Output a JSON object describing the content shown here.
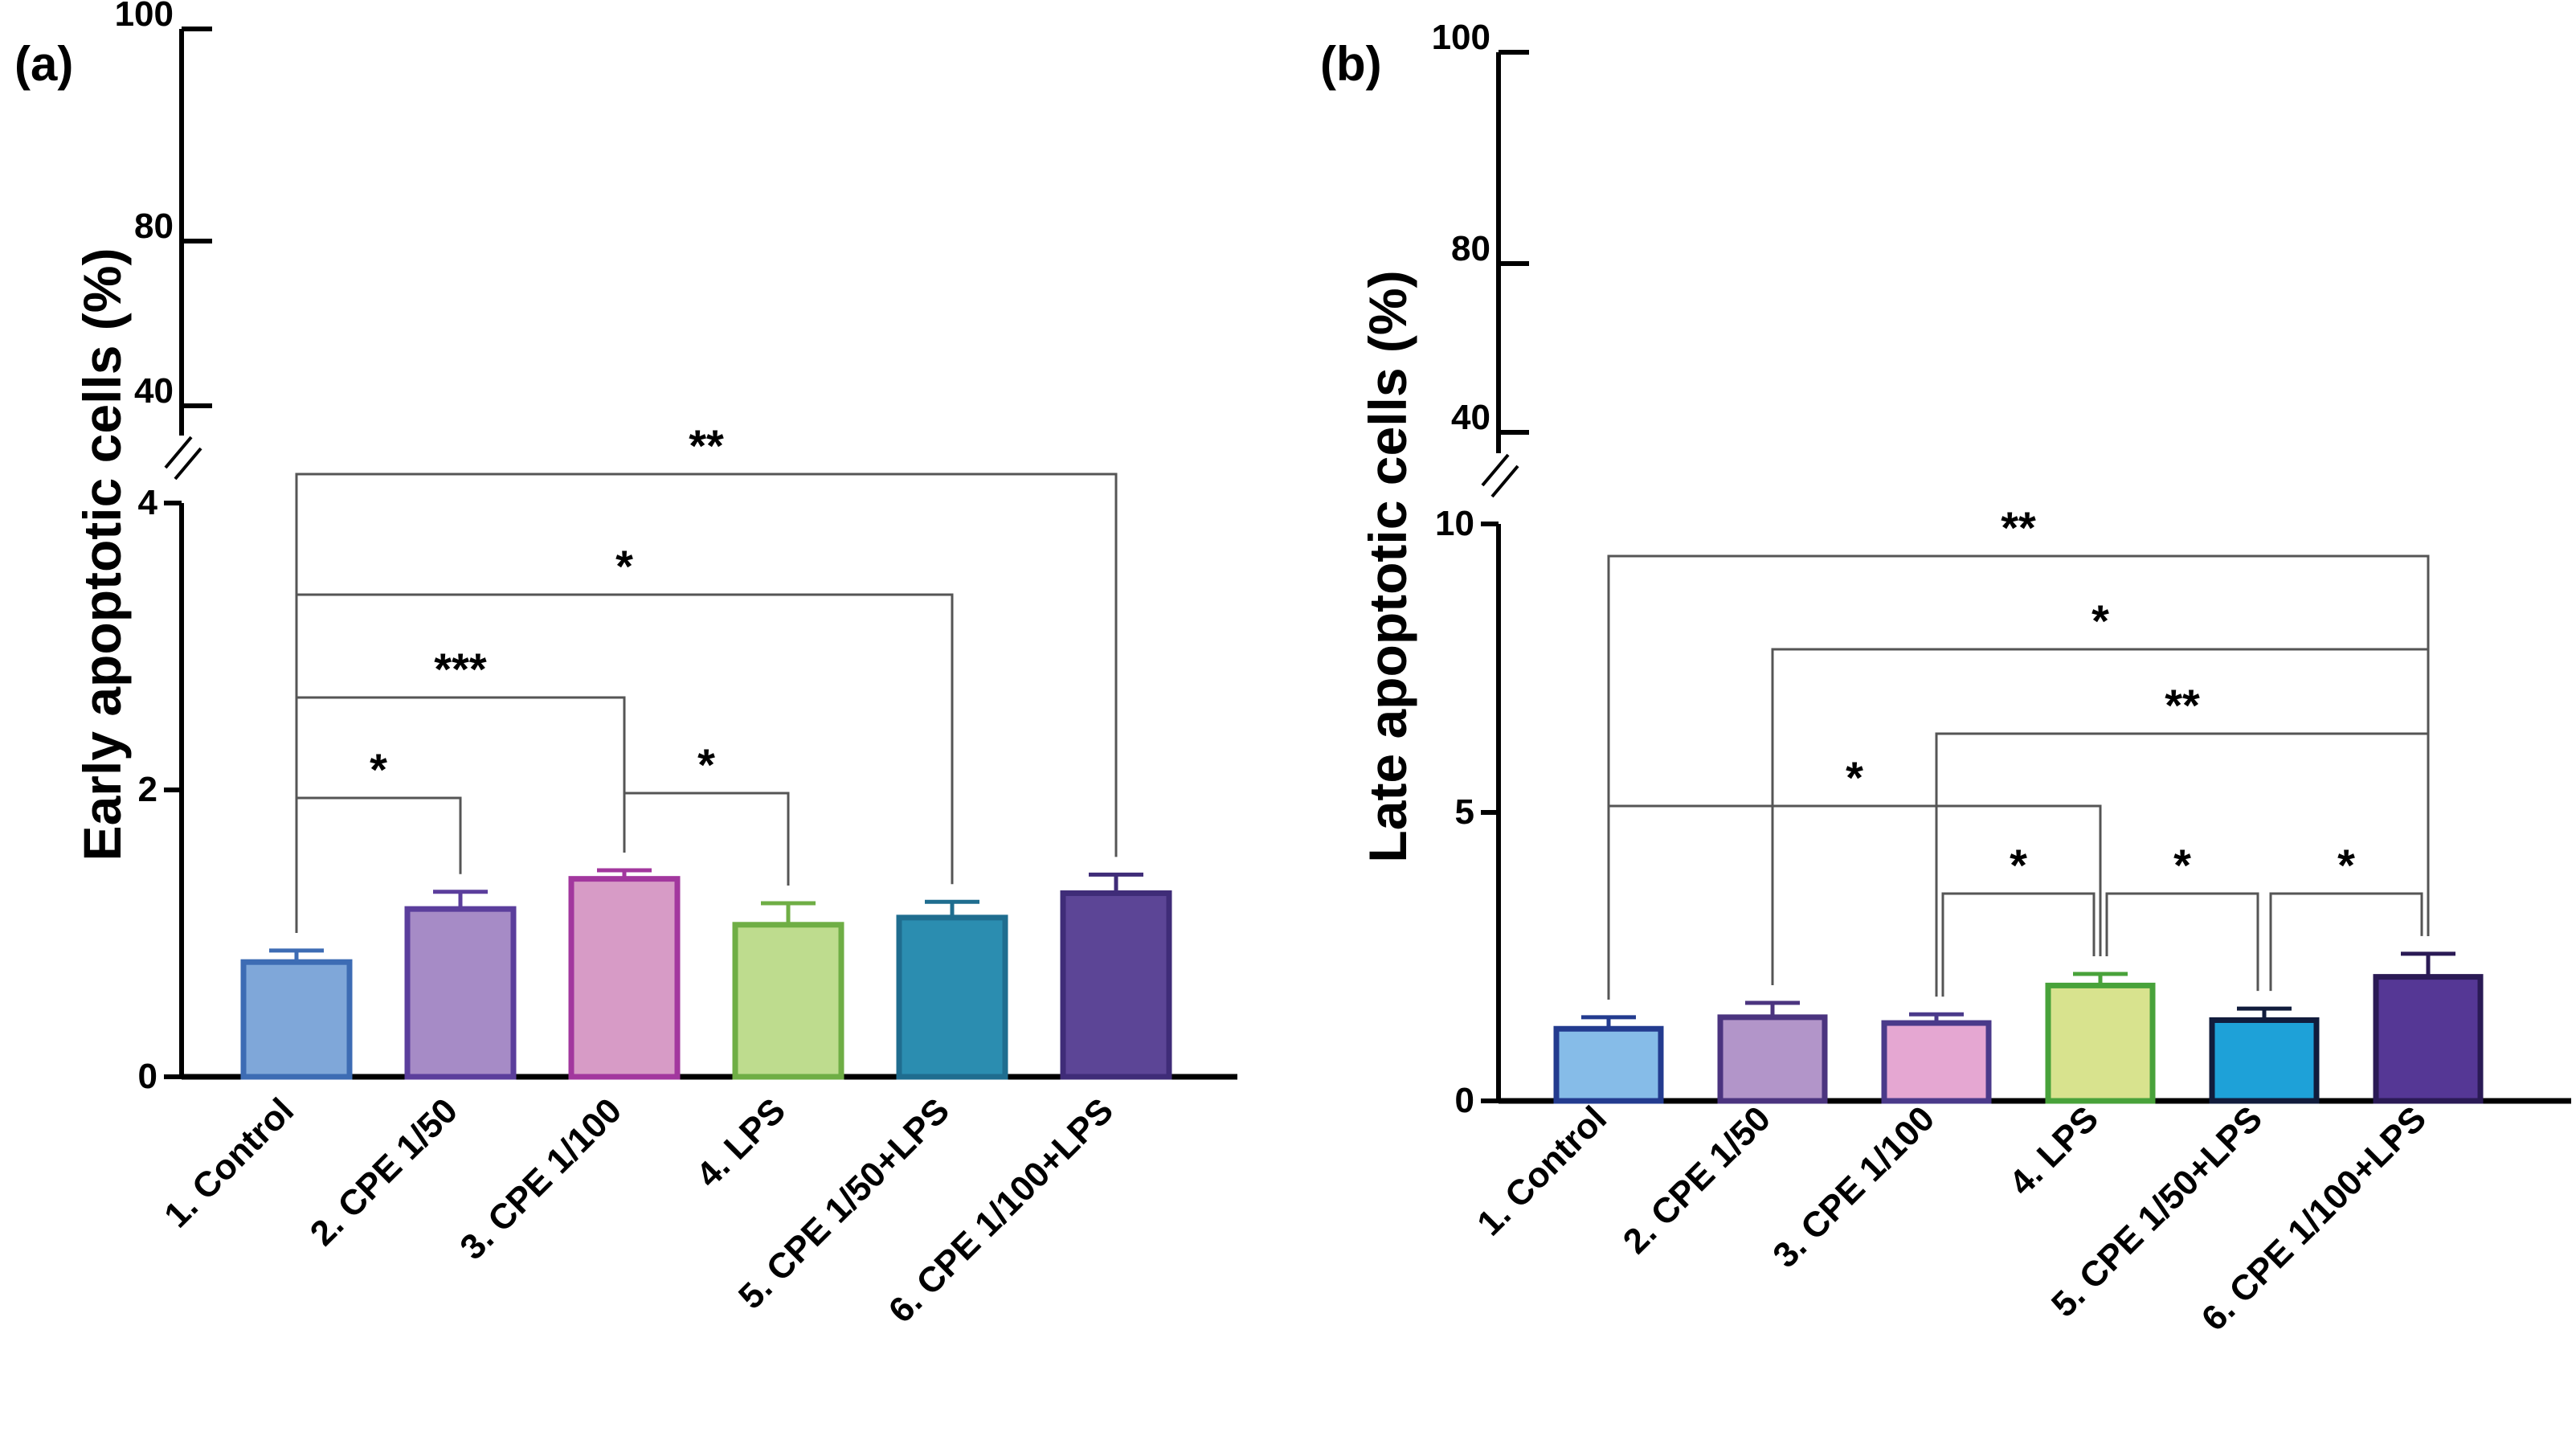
{
  "chart_data": [
    {
      "panel_label": "(a)",
      "type": "bar",
      "ylabel": "Early apoptotic  cells (%)",
      "categories": [
        "1. Control",
        "2. CPE 1/50",
        "3. CPE 1/100",
        "4. LPS",
        "5. CPE 1/50+LPS",
        "6. CPE 1/100+LPS"
      ],
      "values": [
        0.8,
        1.17,
        1.38,
        1.06,
        1.11,
        1.28
      ],
      "errors": [
        0.08,
        0.12,
        0.06,
        0.15,
        0.11,
        0.13
      ],
      "colors": {
        "fill": [
          "#7fa7d9",
          "#a68bc6",
          "#d79bc6",
          "#bedc8e",
          "#2b8db0",
          "#5c4596"
        ],
        "stroke": [
          "#3d6cb4",
          "#5b3e9c",
          "#a2379e",
          "#6fae45",
          "#1f6d8f",
          "#3f2c78"
        ]
      },
      "ylim_lower": [
        0,
        4
      ],
      "yticks_lower": [
        "0",
        "2",
        "4"
      ],
      "yticks_upper": [
        "40",
        "80",
        "100"
      ],
      "significance": [
        {
          "from": 1,
          "to": 6,
          "label": "**"
        },
        {
          "from": 1,
          "to": 5,
          "label": "*"
        },
        {
          "from": 1,
          "to": 3,
          "label": "***"
        },
        {
          "from": 1,
          "to": 2,
          "label": "*"
        },
        {
          "from": 3,
          "to": 4,
          "label": "*"
        }
      ]
    },
    {
      "panel_label": "(b)",
      "type": "bar",
      "ylabel": "Late apoptotic  cells (%)",
      "categories": [
        "1. Control",
        "2. CPE 1/50",
        "3. CPE 1/100",
        "4. LPS",
        "5. CPE 1/50+LPS",
        "6. CPE 1/100+LPS"
      ],
      "values": [
        1.25,
        1.45,
        1.35,
        2.0,
        1.4,
        2.15
      ],
      "errors": [
        0.2,
        0.25,
        0.15,
        0.2,
        0.2,
        0.4
      ],
      "colors": {
        "fill": [
          "#86bce8",
          "#b295c9",
          "#e5a7d2",
          "#d8e38e",
          "#1ea1d8",
          "#553795"
        ],
        "stroke": [
          "#233b8f",
          "#4b347f",
          "#4a3a8a",
          "#48a23a",
          "#111c3c",
          "#2a1a55"
        ]
      },
      "ylim_lower": [
        0,
        10
      ],
      "yticks_lower": [
        "0",
        "5",
        "10"
      ],
      "yticks_upper": [
        "40",
        "80",
        "100"
      ],
      "significance": [
        {
          "from": 1,
          "to": 6,
          "label": "**"
        },
        {
          "from": 2,
          "to": 6,
          "label": "*"
        },
        {
          "from": 3,
          "to": 6,
          "label": "**"
        },
        {
          "from": 1,
          "to": 4,
          "label": "*"
        },
        {
          "from": 3,
          "to": 4,
          "label": "*"
        },
        {
          "from": 4,
          "to": 5,
          "label": "*"
        },
        {
          "from": 5,
          "to": 6,
          "label": "*"
        }
      ]
    }
  ]
}
